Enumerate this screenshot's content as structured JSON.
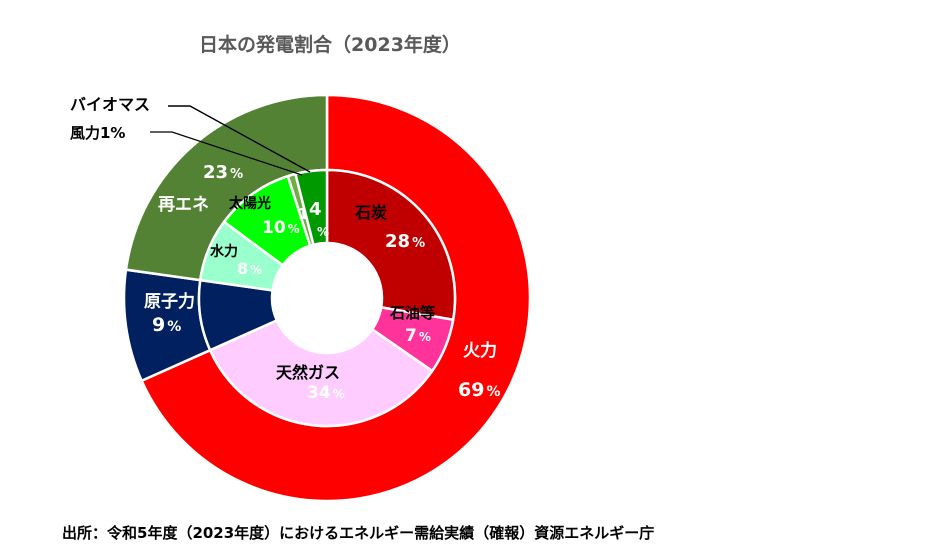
{
  "title": "日本の発電割合（2023年度）",
  "source": "出所：令和5年度（2023年度）におけるエネルギー需給実績（確報）資源エネルギー庁",
  "percent_sign": "%",
  "colors": {
    "thermal": "#ff0000",
    "nuclear": "#002060",
    "renewable": "#548235",
    "coal": "#c00000",
    "oil": "#ff3399",
    "gas": "#ffccff",
    "hydro": "#99ffcc",
    "solar": "#00ff00",
    "wind": "#70ad47",
    "biomass": "#009900"
  },
  "chart_data": {
    "type": "pie",
    "subtype": "nested-donut",
    "title": "日本の発電割合（2023年度）",
    "outer": [
      {
        "key": "thermal",
        "name": "火力",
        "value": 69,
        "label": "69"
      },
      {
        "key": "nuclear",
        "name": "原子力",
        "value": 9,
        "label": "9"
      },
      {
        "key": "renewable",
        "name": "再エネ",
        "value": 23,
        "label": "23"
      }
    ],
    "inner": [
      {
        "key": "coal",
        "name": "石炭",
        "value": 28,
        "label": "28"
      },
      {
        "key": "oil",
        "name": "石油等",
        "value": 7,
        "label": "7"
      },
      {
        "key": "gas",
        "name": "天然ガス",
        "value": 34,
        "label": "34"
      },
      {
        "key": "nuclear",
        "name": "",
        "value": 9,
        "label": ""
      },
      {
        "key": "hydro",
        "name": "水力",
        "value": 8,
        "label": "8"
      },
      {
        "key": "solar",
        "name": "太陽光",
        "value": 10,
        "label": "10"
      },
      {
        "key": "wind",
        "name": "風力1%",
        "value": 1,
        "label": "1"
      },
      {
        "key": "biomass",
        "name": "バイオマス",
        "value": 4,
        "label": "4"
      }
    ]
  }
}
